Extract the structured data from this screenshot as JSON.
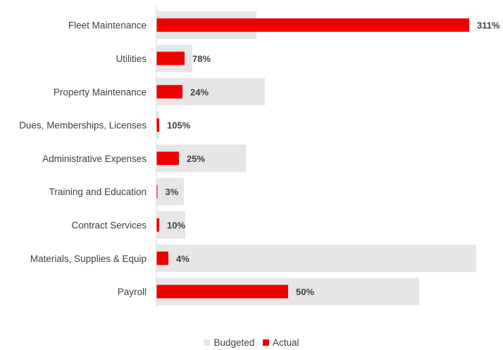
{
  "chart_data": {
    "type": "bar",
    "orientation": "horizontal",
    "categories": [
      "Fleet Maintenance",
      "Utilities",
      "Property Maintenance",
      "Dues, Memberships, Licenses",
      "Administrative Expenses",
      "Training and Education",
      "Contract Services",
      "Materials, Supplies & Equip",
      "Payroll"
    ],
    "series": [
      {
        "name": "Budgeted",
        "color": "#e6e6e6",
        "values": [
          142,
          51,
          154,
          4,
          127,
          39,
          41,
          454,
          373
        ]
      },
      {
        "name": "Actual",
        "color": "#ee0000",
        "values": [
          444,
          40,
          37,
          4,
          32,
          1,
          4,
          17,
          187
        ]
      }
    ],
    "data_labels": [
      "311%",
      "78%",
      "24%",
      "105%",
      "25%",
      "3%",
      "10%",
      "4%",
      "50%"
    ],
    "legend_position": "bottom",
    "grid": false
  }
}
